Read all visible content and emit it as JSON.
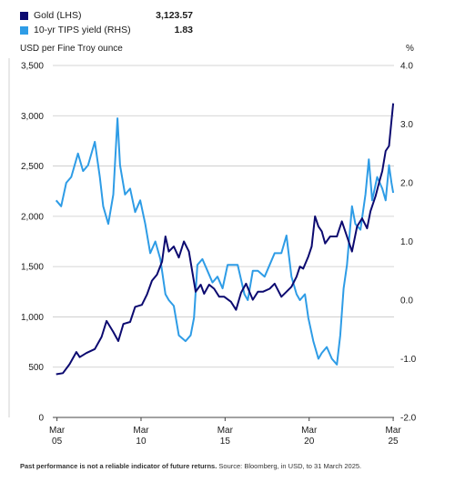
{
  "legend": {
    "items": [
      {
        "label": "Gold (LHS)",
        "value": "3,123.57",
        "color": "#0c0a70"
      },
      {
        "label": "10-yr TIPS yield (RHS)",
        "value": "1.83",
        "color": "#2e9ce6"
      }
    ]
  },
  "axis_titles": {
    "left": "USD per Fine Troy ounce",
    "right": "%"
  },
  "footnote": {
    "bold": "Past performance is not a reliable indicator of future returns.",
    "regular": " Source: Bloomberg, in USD, to 31 March 2025."
  },
  "chart_data": {
    "type": "line",
    "x_ticks": [
      {
        "x": 2005.25,
        "line1": "Mar",
        "line2": "05"
      },
      {
        "x": 2010.25,
        "line1": "Mar",
        "line2": "10"
      },
      {
        "x": 2015.25,
        "line1": "Mar",
        "line2": "15"
      },
      {
        "x": 2020.25,
        "line1": "Mar",
        "line2": "20"
      },
      {
        "x": 2025.25,
        "line1": "Mar",
        "line2": "25"
      }
    ],
    "xlim": [
      2005.0,
      2025.3
    ],
    "y_left": {
      "range": [
        0,
        3500
      ],
      "ticks": [
        "0",
        "500",
        "1,000",
        "1,500",
        "2,000",
        "2,500",
        "3,000",
        "3,500"
      ],
      "tick_values": [
        0,
        500,
        1000,
        1500,
        2000,
        2500,
        3000,
        3500
      ]
    },
    "y_right": {
      "range": [
        -2.0,
        4.0
      ],
      "ticks": [
        "-2.0",
        "-1.0",
        "0.0",
        "1.0",
        "2.0",
        "3.0",
        "4.0"
      ],
      "tick_values": [
        -2,
        -1,
        0,
        1,
        2,
        3,
        4
      ]
    },
    "grid": "horizontal",
    "series": [
      {
        "name": "Gold (LHS)",
        "axis": "left",
        "color": "#0c0a70",
        "points": [
          [
            2005.2,
            430
          ],
          [
            2005.6,
            440
          ],
          [
            2006.0,
            530
          ],
          [
            2006.4,
            650
          ],
          [
            2006.6,
            600
          ],
          [
            2007.0,
            640
          ],
          [
            2007.5,
            680
          ],
          [
            2007.9,
            800
          ],
          [
            2008.2,
            960
          ],
          [
            2008.6,
            850
          ],
          [
            2008.9,
            760
          ],
          [
            2009.2,
            930
          ],
          [
            2009.6,
            950
          ],
          [
            2009.9,
            1100
          ],
          [
            2010.3,
            1120
          ],
          [
            2010.6,
            1220
          ],
          [
            2010.9,
            1360
          ],
          [
            2011.2,
            1420
          ],
          [
            2011.5,
            1550
          ],
          [
            2011.7,
            1800
          ],
          [
            2011.9,
            1650
          ],
          [
            2012.2,
            1700
          ],
          [
            2012.5,
            1590
          ],
          [
            2012.8,
            1750
          ],
          [
            2013.1,
            1650
          ],
          [
            2013.3,
            1450
          ],
          [
            2013.5,
            1250
          ],
          [
            2013.8,
            1320
          ],
          [
            2014.0,
            1230
          ],
          [
            2014.3,
            1320
          ],
          [
            2014.6,
            1280
          ],
          [
            2014.9,
            1200
          ],
          [
            2015.2,
            1200
          ],
          [
            2015.6,
            1150
          ],
          [
            2015.9,
            1070
          ],
          [
            2016.2,
            1240
          ],
          [
            2016.5,
            1330
          ],
          [
            2016.9,
            1170
          ],
          [
            2017.2,
            1250
          ],
          [
            2017.5,
            1250
          ],
          [
            2017.9,
            1280
          ],
          [
            2018.2,
            1330
          ],
          [
            2018.6,
            1200
          ],
          [
            2018.9,
            1250
          ],
          [
            2019.2,
            1300
          ],
          [
            2019.5,
            1400
          ],
          [
            2019.7,
            1500
          ],
          [
            2019.9,
            1480
          ],
          [
            2020.2,
            1600
          ],
          [
            2020.4,
            1700
          ],
          [
            2020.6,
            2000
          ],
          [
            2020.8,
            1900
          ],
          [
            2021.0,
            1850
          ],
          [
            2021.2,
            1730
          ],
          [
            2021.5,
            1800
          ],
          [
            2021.9,
            1800
          ],
          [
            2022.2,
            1950
          ],
          [
            2022.5,
            1800
          ],
          [
            2022.8,
            1650
          ],
          [
            2023.1,
            1900
          ],
          [
            2023.4,
            1980
          ],
          [
            2023.7,
            1880
          ],
          [
            2023.9,
            2050
          ],
          [
            2024.2,
            2200
          ],
          [
            2024.4,
            2330
          ],
          [
            2024.6,
            2450
          ],
          [
            2024.8,
            2650
          ],
          [
            2025.0,
            2700
          ],
          [
            2025.15,
            2950
          ],
          [
            2025.25,
            3124
          ]
        ]
      },
      {
        "name": "10-yr TIPS yield (RHS)",
        "axis": "right",
        "color": "#2e9ce6",
        "points": [
          [
            2005.2,
            1.7
          ],
          [
            2005.5,
            1.6
          ],
          [
            2005.8,
            2.0
          ],
          [
            2006.1,
            2.1
          ],
          [
            2006.5,
            2.5
          ],
          [
            2006.8,
            2.2
          ],
          [
            2007.1,
            2.3
          ],
          [
            2007.5,
            2.7
          ],
          [
            2007.8,
            2.1
          ],
          [
            2008.0,
            1.6
          ],
          [
            2008.3,
            1.3
          ],
          [
            2008.6,
            1.8
          ],
          [
            2008.85,
            3.1
          ],
          [
            2009.0,
            2.3
          ],
          [
            2009.3,
            1.8
          ],
          [
            2009.6,
            1.9
          ],
          [
            2009.9,
            1.5
          ],
          [
            2010.2,
            1.7
          ],
          [
            2010.5,
            1.3
          ],
          [
            2010.8,
            0.8
          ],
          [
            2011.1,
            1.0
          ],
          [
            2011.4,
            0.7
          ],
          [
            2011.7,
            0.1
          ],
          [
            2011.9,
            0.0
          ],
          [
            2012.2,
            -0.1
          ],
          [
            2012.5,
            -0.6
          ],
          [
            2012.9,
            -0.7
          ],
          [
            2013.2,
            -0.6
          ],
          [
            2013.4,
            -0.3
          ],
          [
            2013.6,
            0.6
          ],
          [
            2013.9,
            0.7
          ],
          [
            2014.2,
            0.5
          ],
          [
            2014.5,
            0.3
          ],
          [
            2014.8,
            0.4
          ],
          [
            2015.1,
            0.2
          ],
          [
            2015.4,
            0.6
          ],
          [
            2015.7,
            0.6
          ],
          [
            2016.0,
            0.6
          ],
          [
            2016.4,
            0.1
          ],
          [
            2016.6,
            0.0
          ],
          [
            2016.9,
            0.5
          ],
          [
            2017.2,
            0.5
          ],
          [
            2017.6,
            0.4
          ],
          [
            2017.9,
            0.6
          ],
          [
            2018.2,
            0.8
          ],
          [
            2018.6,
            0.8
          ],
          [
            2018.9,
            1.1
          ],
          [
            2019.2,
            0.4
          ],
          [
            2019.5,
            0.1
          ],
          [
            2019.7,
            0.0
          ],
          [
            2020.0,
            0.1
          ],
          [
            2020.2,
            -0.3
          ],
          [
            2020.5,
            -0.7
          ],
          [
            2020.8,
            -1.0
          ],
          [
            2021.0,
            -0.9
          ],
          [
            2021.3,
            -0.8
          ],
          [
            2021.6,
            -1.0
          ],
          [
            2021.9,
            -1.1
          ],
          [
            2022.1,
            -0.6
          ],
          [
            2022.3,
            0.2
          ],
          [
            2022.5,
            0.6
          ],
          [
            2022.8,
            1.6
          ],
          [
            2023.0,
            1.3
          ],
          [
            2023.3,
            1.2
          ],
          [
            2023.6,
            1.8
          ],
          [
            2023.8,
            2.4
          ],
          [
            2024.0,
            1.7
          ],
          [
            2024.3,
            2.1
          ],
          [
            2024.6,
            1.9
          ],
          [
            2024.8,
            1.7
          ],
          [
            2025.0,
            2.3
          ],
          [
            2025.15,
            2.0
          ],
          [
            2025.25,
            1.83
          ]
        ]
      }
    ]
  }
}
